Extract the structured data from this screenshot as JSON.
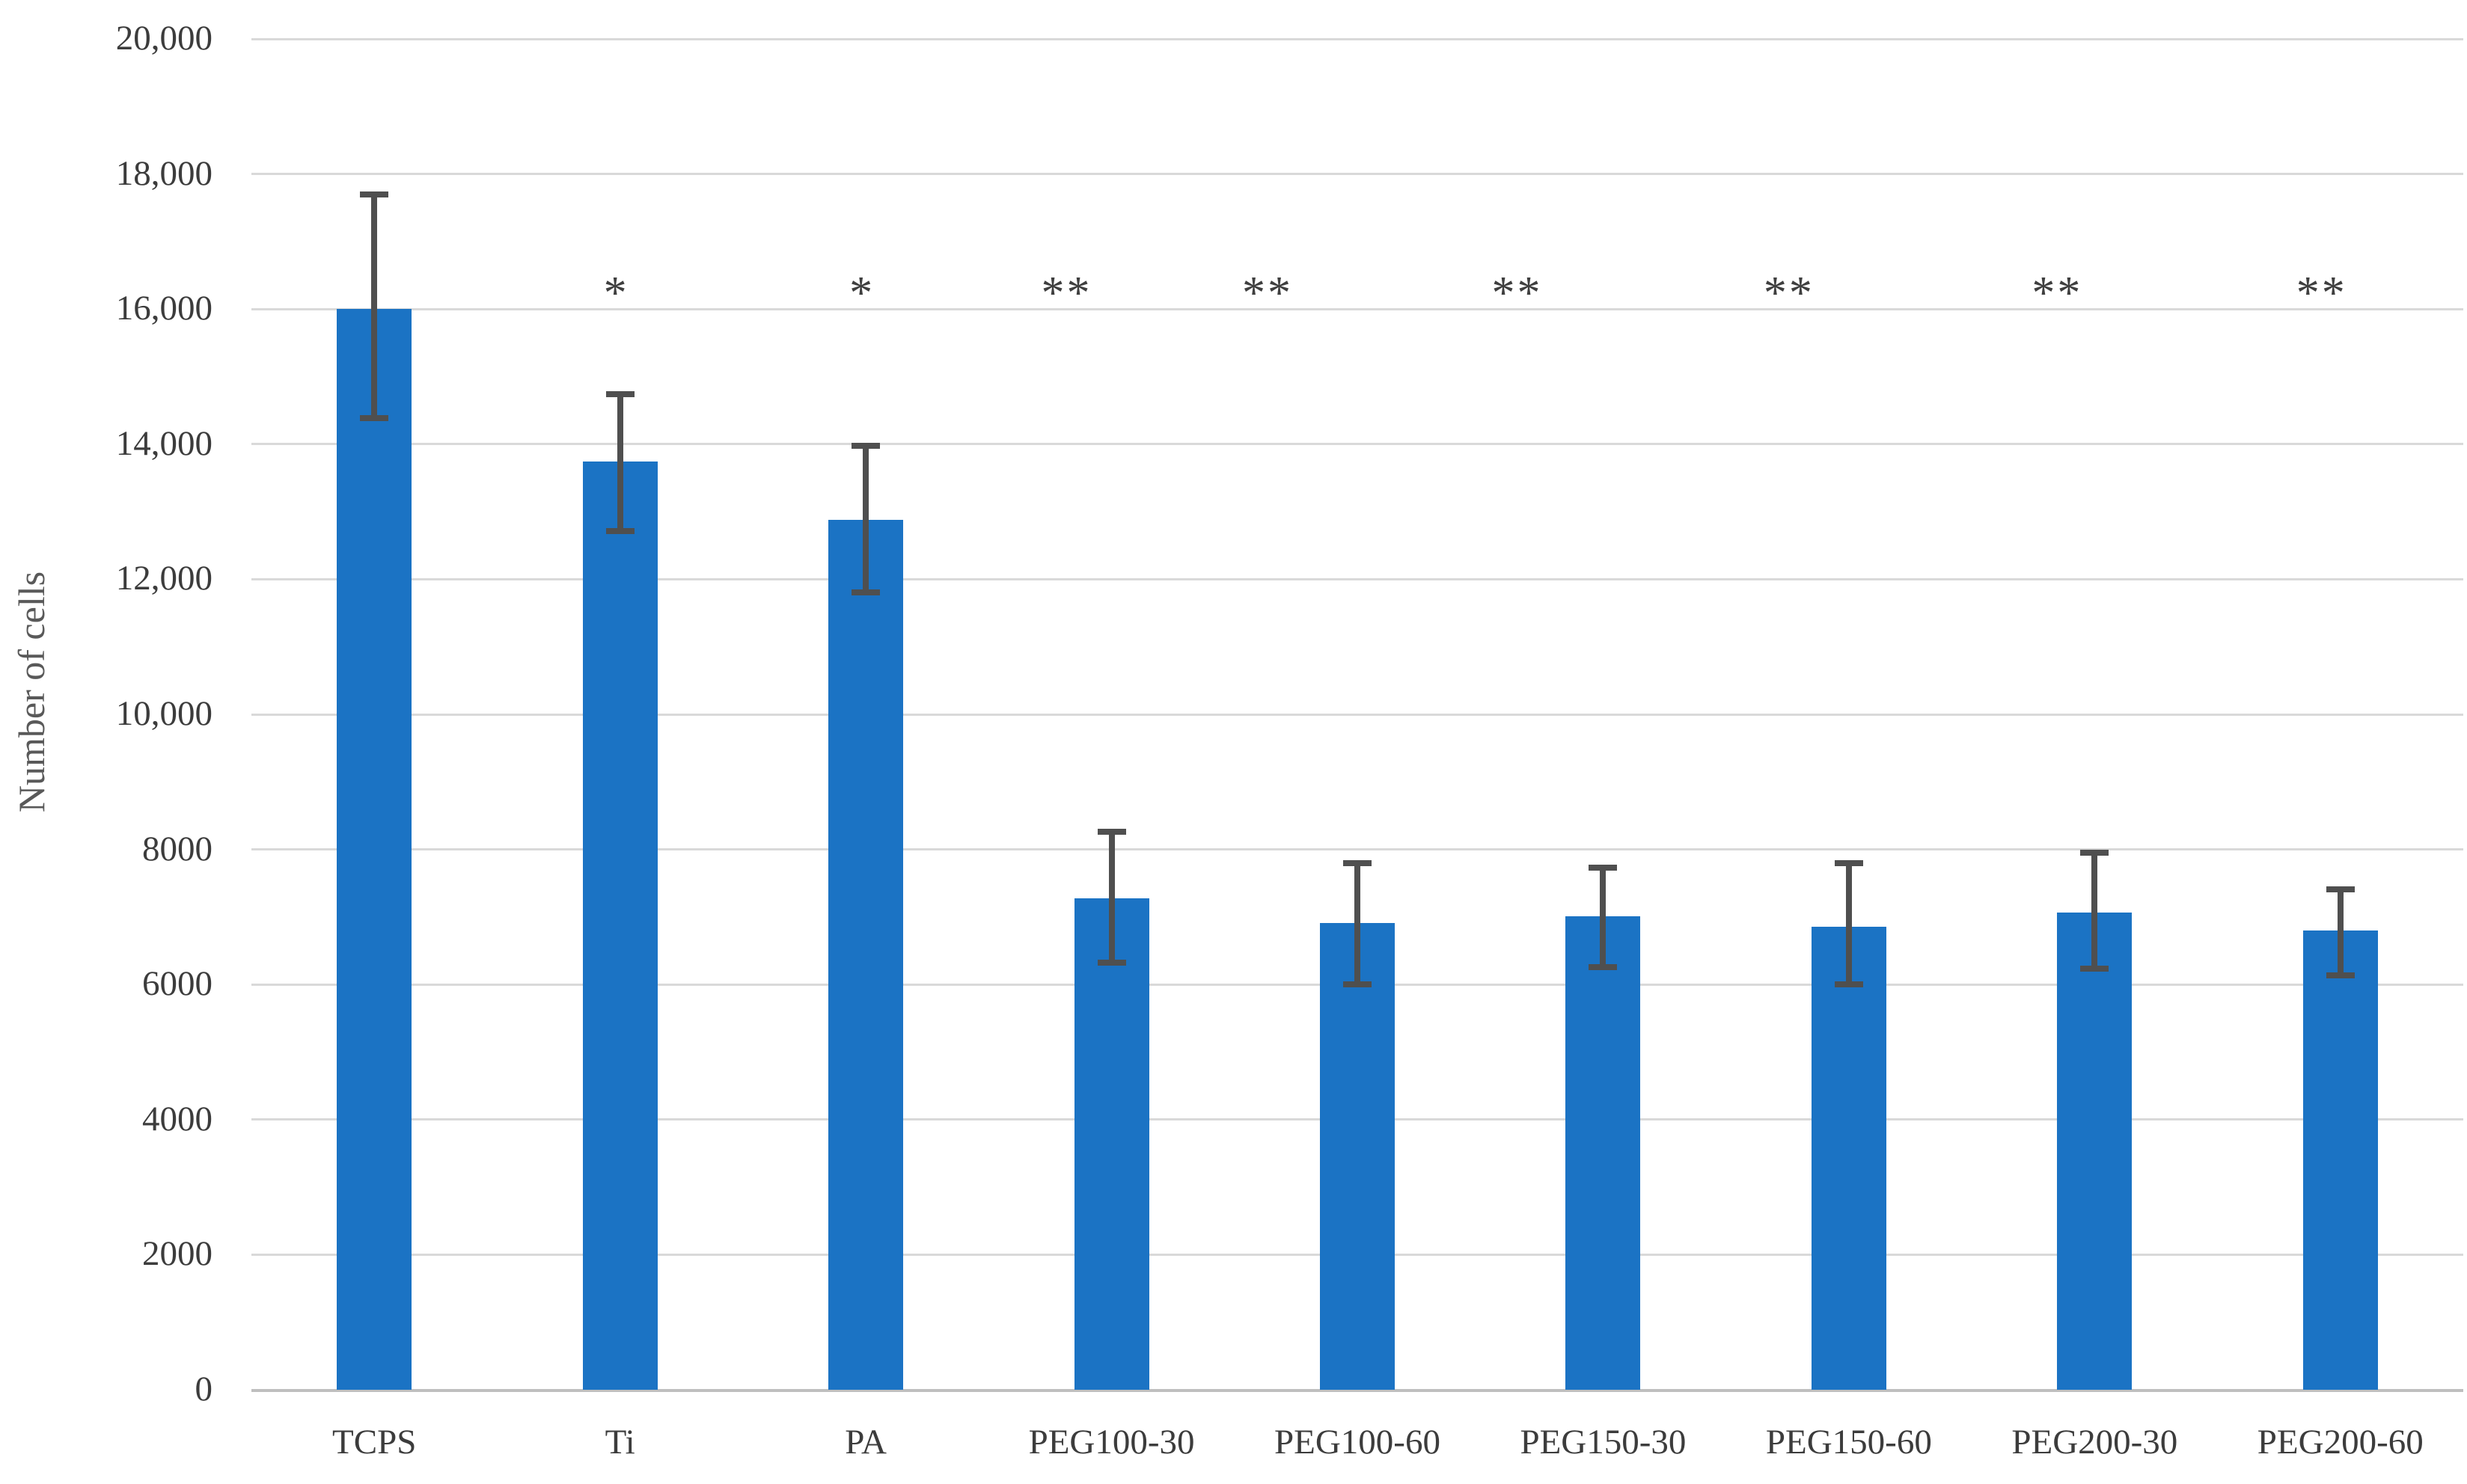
{
  "figure": {
    "background": "#ffffff"
  },
  "chart_data": {
    "type": "bar",
    "title": "",
    "xlabel": "",
    "ylabel": "Number of cells",
    "ylim": [
      0,
      20000
    ],
    "ytick_step": 2000,
    "grid": true,
    "legend": "none",
    "yticks": [
      {
        "value": 0,
        "label": "0"
      },
      {
        "value": 2000,
        "label": "2000"
      },
      {
        "value": 4000,
        "label": "4000"
      },
      {
        "value": 6000,
        "label": "6000"
      },
      {
        "value": 8000,
        "label": "8000"
      },
      {
        "value": 10000,
        "label": "10,000"
      },
      {
        "value": 12000,
        "label": "12,000"
      },
      {
        "value": 14000,
        "label": "14,000"
      },
      {
        "value": 16000,
        "label": "16,000"
      },
      {
        "value": 18000,
        "label": "18,000"
      },
      {
        "value": 20000,
        "label": "20,000"
      }
    ],
    "categories": [
      "TCPS",
      "Ti",
      "PA",
      "PEG100-30",
      "PEG100-60",
      "PEG150-30",
      "PEG150-60",
      "PEG200-30",
      "PEG200-60"
    ],
    "bars": [
      {
        "label": "TCPS",
        "value": 16000,
        "err_low": 14380,
        "err_high": 17700,
        "sig": "",
        "sig_offset": 0
      },
      {
        "label": "Ti",
        "value": 13740,
        "err_low": 12710,
        "err_high": 14740,
        "sig": "*",
        "sig_offset": -5
      },
      {
        "label": "PA",
        "value": 12880,
        "err_low": 11800,
        "err_high": 13980,
        "sig": "*",
        "sig_offset": -5
      },
      {
        "label": "PEG100-30",
        "value": 7280,
        "err_low": 6320,
        "err_high": 8260,
        "sig": "**",
        "sig_offset": -60
      },
      {
        "label": "PEG100-60",
        "value": 6910,
        "err_low": 6000,
        "err_high": 7800,
        "sig": "**",
        "sig_offset": -120
      },
      {
        "label": "PEG150-30",
        "value": 7010,
        "err_low": 6260,
        "err_high": 7730,
        "sig": "**",
        "sig_offset": -115
      },
      {
        "label": "PEG150-60",
        "value": 6860,
        "err_low": 6000,
        "err_high": 7800,
        "sig": "**",
        "sig_offset": -80
      },
      {
        "label": "PEG200-30",
        "value": 7060,
        "err_low": 6240,
        "err_high": 7950,
        "sig": "**",
        "sig_offset": -50
      },
      {
        "label": "PEG200-60",
        "value": 6800,
        "err_low": 6140,
        "err_high": 7410,
        "sig": "**",
        "sig_offset": -25
      }
    ],
    "sig_y_value": 16400
  },
  "colors": {
    "bar": "#1b73c4",
    "error": "#4f4f4f",
    "grid": "#d9d9d9",
    "baseline": "#bfbfbf",
    "tick_text": "#3c3c3c",
    "axis_title_text": "#595959",
    "significance_text": "#3f3f3f",
    "background": "#ffffff"
  }
}
